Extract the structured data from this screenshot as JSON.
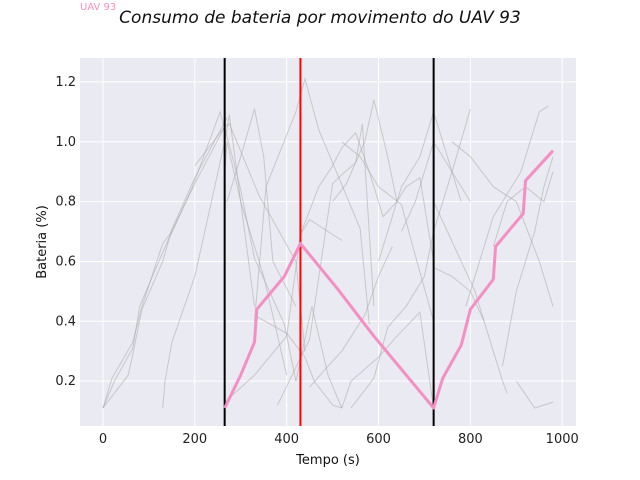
{
  "corner_label": "UAV 93",
  "chart_data": {
    "type": "line",
    "title": "Consumo de bateria por movimento do UAV 93",
    "xlabel": "Tempo (s)",
    "ylabel": "Bateria (%)",
    "xlim": [
      -50,
      1030
    ],
    "ylim": [
      0.05,
      1.28
    ],
    "xticks": [
      0,
      200,
      400,
      600,
      800,
      1000
    ],
    "yticks": [
      0.2,
      0.4,
      0.6,
      0.8,
      1.0,
      1.2
    ],
    "xtick_labels": [
      "0",
      "200",
      "400",
      "600",
      "800",
      "1000"
    ],
    "ytick_labels": [
      "0.2",
      "0.4",
      "0.6",
      "0.8",
      "1.0",
      "1.2"
    ],
    "grid": true,
    "vertical_lines": [
      {
        "x": 265,
        "color": "#000000"
      },
      {
        "x": 430,
        "color": "#ff0000"
      },
      {
        "x": 720,
        "color": "#000000"
      }
    ],
    "background_series": [
      {
        "x": [
          0,
          20,
          65,
          85,
          130,
          145,
          200,
          270
        ],
        "y": [
          0.11,
          0.21,
          0.33,
          0.45,
          0.66,
          0.69,
          0.88,
          1.08
        ]
      },
      {
        "x": [
          0,
          25,
          65,
          80,
          130,
          150,
          200,
          265
        ],
        "y": [
          0.11,
          0.2,
          0.31,
          0.45,
          0.63,
          0.7,
          0.86,
          1.05
        ]
      },
      {
        "x": [
          0,
          55,
          65,
          85,
          130,
          145,
          195,
          255,
          280,
          300,
          330,
          395,
          420
        ],
        "y": [
          0.11,
          0.22,
          0.29,
          0.44,
          0.6,
          0.68,
          0.85,
          1.1,
          0.96,
          0.84,
          0.61,
          0.39,
          0.2
        ]
      },
      {
        "x": [
          130,
          135,
          150,
          200,
          265,
          275,
          330
        ],
        "y": [
          0.11,
          0.2,
          0.33,
          0.55,
          1.0,
          1.09,
          0.45
        ]
      },
      {
        "x": [
          200,
          265,
          275,
          340,
          420,
          440
        ],
        "y": [
          0.92,
          1.05,
          1.06,
          0.82,
          0.6,
          0.3
        ]
      },
      {
        "x": [
          265,
          270,
          300,
          350,
          400
        ],
        "y": [
          0.9,
          1.0,
          0.8,
          0.55,
          0.22
        ]
      },
      {
        "x": [
          265,
          330,
          400,
          430,
          450,
          490,
          520
        ],
        "y": [
          0.13,
          0.22,
          0.35,
          0.69,
          0.74,
          0.7,
          0.67
        ]
      },
      {
        "x": [
          270,
          300,
          330,
          350,
          370,
          420
        ],
        "y": [
          0.8,
          0.95,
          1.11,
          0.95,
          0.6,
          0.45
        ]
      },
      {
        "x": [
          330,
          400,
          440,
          460,
          500,
          520,
          540,
          600,
          640,
          690,
          720
        ],
        "y": [
          0.42,
          0.36,
          0.28,
          0.2,
          0.12,
          0.11,
          0.2,
          0.28,
          0.35,
          0.43,
          0.11
        ]
      },
      {
        "x": [
          330,
          355,
          420,
          440,
          470,
          560,
          580
        ],
        "y": [
          0.4,
          0.85,
          1.1,
          1.21,
          1.04,
          0.71,
          0.39
        ]
      },
      {
        "x": [
          380,
          450,
          500,
          520,
          550,
          565,
          590
        ],
        "y": [
          0.12,
          0.34,
          0.86,
          0.89,
          0.93,
          1.06,
          0.45
        ]
      },
      {
        "x": [
          420,
          455,
          490,
          520
        ],
        "y": [
          0.2,
          0.45,
          0.22,
          0.11
        ]
      },
      {
        "x": [
          430,
          470,
          500,
          520,
          550,
          580,
          610,
          640,
          660,
          690,
          720
        ],
        "y": [
          0.69,
          0.85,
          0.92,
          0.98,
          1.03,
          0.9,
          0.75,
          0.8,
          0.85,
          0.88,
          0.6
        ]
      },
      {
        "x": [
          450,
          490,
          520,
          570,
          600,
          630
        ],
        "y": [
          0.18,
          0.25,
          0.3,
          0.42,
          0.55,
          0.65
        ]
      },
      {
        "x": [
          500,
          530,
          570,
          590,
          620,
          640
        ],
        "y": [
          0.8,
          0.86,
          1.0,
          1.14,
          0.95,
          0.8
        ]
      },
      {
        "x": [
          520,
          560,
          600,
          650,
          680,
          720
        ],
        "y": [
          1.0,
          0.95,
          0.85,
          0.79,
          0.62,
          0.4
        ]
      },
      {
        "x": [
          540,
          590,
          620,
          660,
          700,
          720,
          760,
          800
        ],
        "y": [
          0.11,
          0.21,
          0.38,
          0.45,
          0.55,
          0.7,
          0.9,
          1.11
        ]
      },
      {
        "x": [
          600,
          650,
          690,
          720,
          740,
          760,
          780,
          800
        ],
        "y": [
          0.6,
          0.85,
          0.95,
          1.1,
          1.0,
          0.9,
          0.85,
          0.8
        ]
      },
      {
        "x": [
          650,
          680,
          720,
          760,
          780
        ],
        "y": [
          0.7,
          0.8,
          1.0,
          0.9,
          0.8
        ]
      },
      {
        "x": [
          720,
          750,
          780,
          810,
          830
        ],
        "y": [
          0.8,
          0.7,
          0.6,
          0.5,
          0.4
        ]
      },
      {
        "x": [
          720,
          760,
          800,
          830,
          850,
          870,
          880
        ],
        "y": [
          0.58,
          0.55,
          0.5,
          0.4,
          0.3,
          0.2,
          0.16
        ]
      },
      {
        "x": [
          760,
          800,
          850,
          900,
          950,
          980
        ],
        "y": [
          1.0,
          0.95,
          0.85,
          0.8,
          0.6,
          0.45
        ]
      },
      {
        "x": [
          790,
          850,
          870,
          910,
          940,
          950,
          970
        ],
        "y": [
          0.45,
          0.75,
          0.8,
          0.9,
          1.05,
          1.1,
          1.12
        ]
      },
      {
        "x": [
          850,
          880,
          920,
          960,
          980
        ],
        "y": [
          0.65,
          0.8,
          0.85,
          0.8,
          0.9
        ]
      },
      {
        "x": [
          870,
          900,
          940,
          960,
          980
        ],
        "y": [
          0.25,
          0.5,
          0.7,
          0.85,
          0.95
        ]
      },
      {
        "x": [
          900,
          940,
          980
        ],
        "y": [
          0.2,
          0.11,
          0.13
        ]
      }
    ],
    "highlight_series": {
      "color": "#f48fc4",
      "x": [
        265,
        300,
        330,
        335,
        395,
        430,
        510,
        590,
        720,
        740,
        780,
        800,
        850,
        855,
        915,
        920,
        980
      ],
      "y": [
        0.11,
        0.22,
        0.33,
        0.44,
        0.55,
        0.66,
        0.51,
        0.35,
        0.11,
        0.21,
        0.32,
        0.44,
        0.54,
        0.65,
        0.76,
        0.87,
        0.97
      ]
    }
  }
}
